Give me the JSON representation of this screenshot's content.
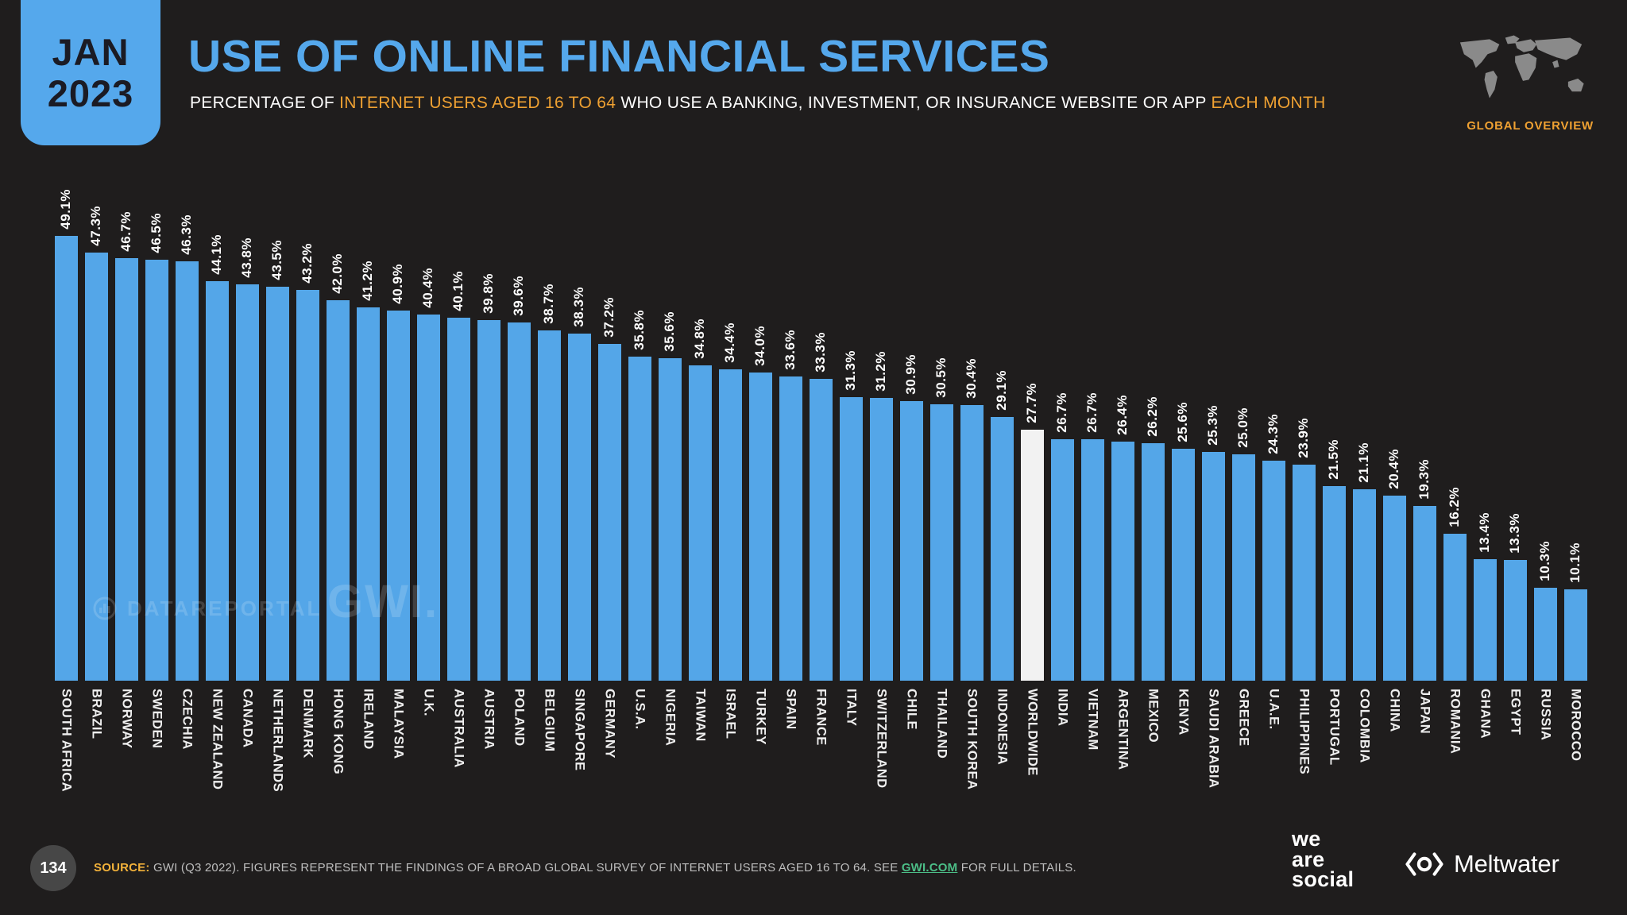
{
  "slide": {
    "date_line1": "JAN",
    "date_line2": "2023",
    "title": "USE OF ONLINE FINANCIAL SERVICES",
    "subtitle_segments": [
      {
        "text": "PERCENTAGE OF ",
        "highlight": false
      },
      {
        "text": "INTERNET USERS AGED 16 TO 64",
        "highlight": true
      },
      {
        "text": " WHO USE A BANKING, INVESTMENT, OR INSURANCE WEBSITE OR APP ",
        "highlight": false
      },
      {
        "text": "EACH MONTH",
        "highlight": true
      }
    ],
    "overview_label": "GLOBAL OVERVIEW",
    "page_number": "134",
    "source_segments": [
      {
        "text": "SOURCE:",
        "style": "label"
      },
      {
        "text": " GWI (Q3 2022). FIGURES REPRESENT THE FINDINGS OF A BROAD GLOBAL SURVEY OF INTERNET USERS AGED 16 TO 64. SEE ",
        "style": "plain"
      },
      {
        "text": "GWI.COM",
        "style": "link"
      },
      {
        "text": " FOR FULL DETAILS.",
        "style": "plain"
      }
    ],
    "watermark_datareportal": "DATAREPORTAL",
    "watermark_gwi": "GWI.",
    "logo_wearesocial": [
      "we",
      "are",
      "social"
    ],
    "logo_meltwater": "Meltwater"
  },
  "colors": {
    "background": "#1F1D1D",
    "accent_blue": "#55A8EC",
    "bar_blue": "#54A6E8",
    "accent_orange": "#EFA132",
    "source_label_orange": "#F2B13A",
    "link_green": "#4CBE87",
    "highlight_bar_white": "#F2F2F2",
    "map_gray": "#8A8A8A"
  },
  "chart_data": {
    "type": "bar",
    "title": "USE OF ONLINE FINANCIAL SERVICES",
    "subtitle": "PERCENTAGE OF INTERNET USERS AGED 16 TO 64 WHO USE A BANKING, INVESTMENT, OR INSURANCE WEBSITE OR APP EACH MONTH",
    "unit": "%",
    "ylim": [
      0,
      50
    ],
    "grid": false,
    "legend": false,
    "value_label_format": "0.0%",
    "highlight_category": "WORLDWIDE",
    "categories": [
      "SOUTH AFRICA",
      "BRAZIL",
      "NORWAY",
      "SWEDEN",
      "CZECHIA",
      "NEW ZEALAND",
      "CANADA",
      "NETHERLANDS",
      "DENMARK",
      "HONG KONG",
      "IRELAND",
      "MALAYSIA",
      "U.K.",
      "AUSTRALIA",
      "AUSTRIA",
      "POLAND",
      "BELGIUM",
      "SINGAPORE",
      "GERMANY",
      "U.S.A.",
      "NIGERIA",
      "TAIWAN",
      "ISRAEL",
      "TURKEY",
      "SPAIN",
      "FRANCE",
      "ITALY",
      "SWITZERLAND",
      "CHILE",
      "THAILAND",
      "SOUTH KOREA",
      "INDONESIA",
      "WORLDWIDE",
      "INDIA",
      "VIETNAM",
      "ARGENTINA",
      "MEXICO",
      "KENYA",
      "SAUDI ARABIA",
      "GREECE",
      "U.A.E.",
      "PHILIPPINES",
      "PORTUGAL",
      "COLOMBIA",
      "CHINA",
      "JAPAN",
      "ROMANIA",
      "GHANA",
      "EGYPT",
      "RUSSIA",
      "MOROCCO"
    ],
    "values": [
      49.1,
      47.3,
      46.7,
      46.5,
      46.3,
      44.1,
      43.8,
      43.5,
      43.2,
      42.0,
      41.2,
      40.9,
      40.4,
      40.1,
      39.8,
      39.6,
      38.7,
      38.3,
      37.2,
      35.8,
      35.6,
      34.8,
      34.4,
      34.0,
      33.6,
      33.3,
      31.3,
      31.2,
      30.9,
      30.5,
      30.4,
      29.1,
      27.7,
      26.7,
      26.7,
      26.4,
      26.2,
      25.6,
      25.3,
      25.0,
      24.3,
      23.9,
      21.5,
      21.1,
      20.4,
      19.3,
      16.2,
      13.4,
      13.3,
      10.3,
      10.1
    ]
  }
}
